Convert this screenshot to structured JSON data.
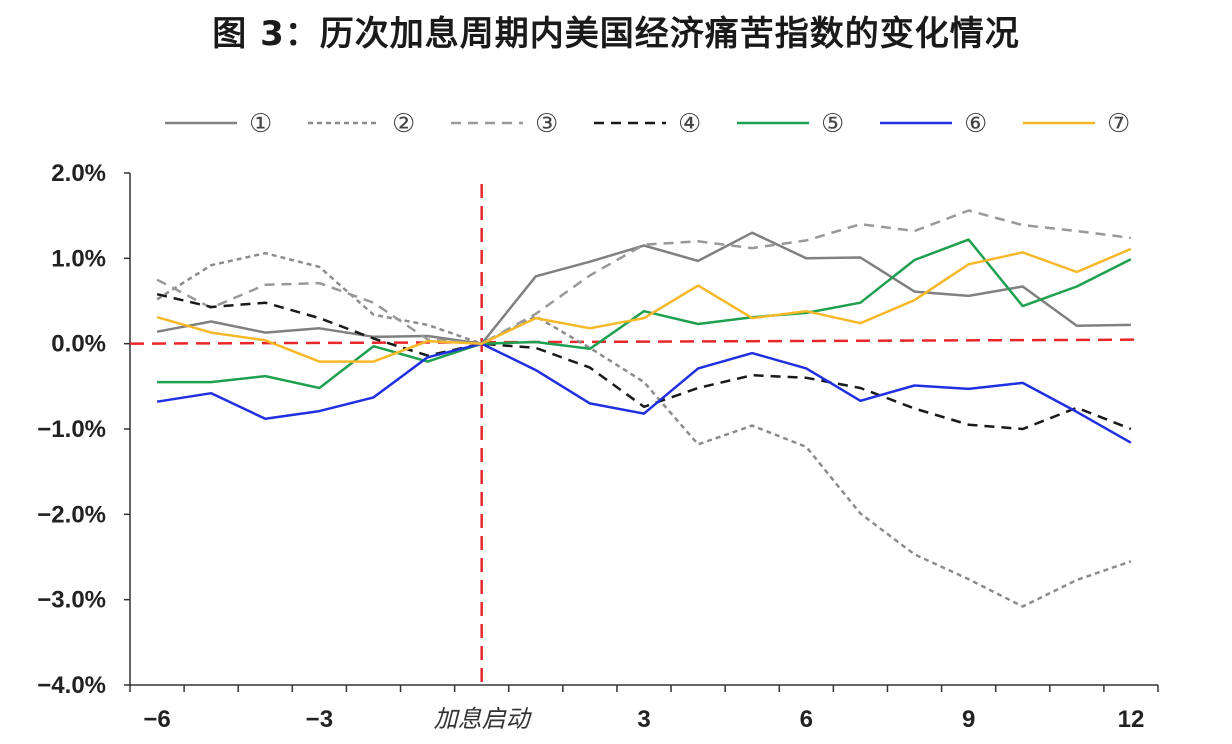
{
  "title": "图 3：历次加息周期内美国经济痛苦指数的变化情况",
  "chart_data": {
    "type": "line",
    "title": "图 3：历次加息周期内美国经济痛苦指数的变化情况",
    "xlabel": "",
    "ylabel": "",
    "x": [
      -6,
      -5,
      -4,
      -3,
      -2,
      -1,
      0,
      1,
      2,
      3,
      4,
      5,
      6,
      7,
      8,
      9,
      10,
      11,
      12
    ],
    "x_tick_labels": [
      {
        "x": -6,
        "label": "−6"
      },
      {
        "x": -3,
        "label": "−3"
      },
      {
        "x": 0,
        "label": "加息启动"
      },
      {
        "x": 3,
        "label": "3"
      },
      {
        "x": 6,
        "label": "6"
      },
      {
        "x": 9,
        "label": "9"
      },
      {
        "x": 12,
        "label": "12"
      }
    ],
    "ylim": [
      -4.0,
      2.0
    ],
    "y_ticks": [
      {
        "value": 2.0,
        "label": "2.0%"
      },
      {
        "value": 1.0,
        "label": "1.0%"
      },
      {
        "value": 0.0,
        "label": "0.0%"
      },
      {
        "value": -1.0,
        "label": "−1.0%"
      },
      {
        "value": -2.0,
        "label": "−2.0%"
      },
      {
        "value": -3.0,
        "label": "−3.0%"
      },
      {
        "value": -4.0,
        "label": "−4.0%"
      }
    ],
    "legend_position": "top",
    "reference_lines": {
      "vertical_x": 0,
      "horizontal_y": 0,
      "color": "#e8262b"
    },
    "series": [
      {
        "name": "①",
        "color": "#808080",
        "dash": "solid",
        "values": [
          0.14,
          0.26,
          0.13,
          0.18,
          0.08,
          0.09,
          0.0,
          0.79,
          0.96,
          1.15,
          0.97,
          1.3,
          1.0,
          1.01,
          0.61,
          0.56,
          0.67,
          0.21,
          0.22
        ]
      },
      {
        "name": "②",
        "color": "#8c8c8c",
        "dash": "dotted",
        "values": [
          0.52,
          0.92,
          1.06,
          0.9,
          0.34,
          0.22,
          0.0,
          0.32,
          -0.05,
          -0.45,
          -1.18,
          -0.96,
          -1.21,
          -1.99,
          -2.47,
          -2.76,
          -3.08,
          -2.77,
          -2.55
        ]
      },
      {
        "name": "③",
        "color": "#999999",
        "dash": "dashed",
        "values": [
          0.75,
          0.42,
          0.69,
          0.71,
          0.48,
          0.05,
          0.0,
          0.35,
          0.8,
          1.16,
          1.2,
          1.12,
          1.21,
          1.4,
          1.32,
          1.56,
          1.39,
          1.32,
          1.24
        ]
      },
      {
        "name": "④",
        "color": "#1a1a1a",
        "dash": "dashed",
        "values": [
          0.58,
          0.43,
          0.48,
          0.3,
          0.06,
          -0.14,
          0.0,
          -0.05,
          -0.28,
          -0.74,
          -0.52,
          -0.37,
          -0.4,
          -0.52,
          -0.76,
          -0.95,
          -1.0,
          -0.75,
          -1.0
        ]
      },
      {
        "name": "⑤",
        "color": "#1fa050",
        "dash": "solid",
        "values": [
          -0.45,
          -0.45,
          -0.38,
          -0.52,
          -0.03,
          -0.21,
          0.0,
          0.02,
          -0.06,
          0.38,
          0.23,
          0.31,
          0.36,
          0.48,
          0.98,
          1.22,
          0.44,
          0.67,
          0.99
        ]
      },
      {
        "name": "⑥",
        "color": "#2030e0",
        "dash": "solid",
        "values": [
          -0.68,
          -0.58,
          -0.88,
          -0.79,
          -0.63,
          -0.16,
          0.0,
          -0.31,
          -0.7,
          -0.82,
          -0.29,
          -0.11,
          -0.29,
          -0.67,
          -0.49,
          -0.53,
          -0.46,
          -0.8,
          -1.16
        ]
      },
      {
        "name": "⑦",
        "color": "#f5b829",
        "dash": "solid",
        "values": [
          0.31,
          0.13,
          0.04,
          -0.21,
          -0.21,
          0.03,
          0.0,
          0.3,
          0.18,
          0.3,
          0.68,
          0.3,
          0.38,
          0.24,
          0.51,
          0.93,
          1.07,
          0.84,
          1.11
        ]
      }
    ]
  }
}
